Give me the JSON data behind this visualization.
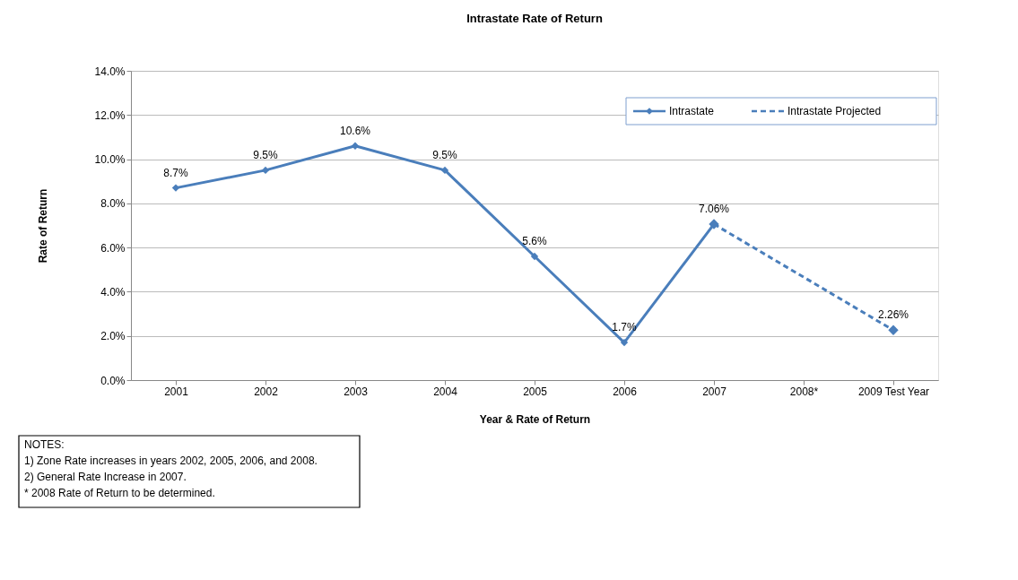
{
  "chart_data": {
    "type": "line",
    "title": "Intrastate Rate of Return",
    "xlabel": "Year & Rate of Return",
    "ylabel": "Rate of Return",
    "categories": [
      "2001",
      "2002",
      "2003",
      "2004",
      "2005",
      "2006",
      "2007",
      "2008*",
      "2009 Test Year"
    ],
    "series": [
      {
        "name": "Intrastate",
        "color": "#4a7ebb",
        "line_style": "solid",
        "values": [
          8.7,
          9.5,
          10.6,
          9.5,
          5.6,
          1.7,
          7.06,
          null,
          null
        ],
        "value_labels": [
          "8.7%",
          "9.5%",
          "10.6%",
          "9.5%",
          "5.6%",
          "1.7%",
          "7.06%",
          null,
          null
        ]
      },
      {
        "name": "Intrastate Projected",
        "color": "#4a7ebb",
        "line_style": "dashed",
        "values": [
          null,
          null,
          null,
          null,
          null,
          null,
          7.06,
          null,
          2.26
        ],
        "value_labels": [
          null,
          null,
          null,
          null,
          null,
          null,
          null,
          null,
          "2.26%"
        ]
      }
    ],
    "ylim": [
      0,
      14
    ],
    "yticks": [
      {
        "value": 0,
        "label": "0.0%"
      },
      {
        "value": 2,
        "label": "2.0%"
      },
      {
        "value": 4,
        "label": "4.0%"
      },
      {
        "value": 6,
        "label": "6.0%"
      },
      {
        "value": 8,
        "label": "8.0%"
      },
      {
        "value": 10,
        "label": "10.0%"
      },
      {
        "value": 12,
        "label": "12.0%"
      },
      {
        "value": 14,
        "label": "14.0%"
      }
    ],
    "grid": "y",
    "legend": "top right",
    "marker": "diamond",
    "annotations": [
      "NOTES:",
      "1) Zone Rate increases in years 2002, 2005, 2006, and 2008.",
      "2) General Rate Increase in 2007.",
      "*  2008 Rate of Return to be determined."
    ]
  }
}
